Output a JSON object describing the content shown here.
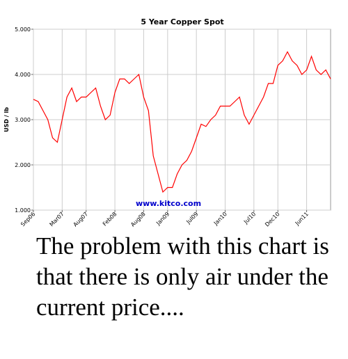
{
  "chart_data": {
    "type": "line",
    "title": "5 Year Copper Spot",
    "y_label": "USD / lb",
    "watermark": "www.kitco.com",
    "categories": [
      "Sep06",
      null,
      null,
      null,
      null,
      null,
      "Mar07",
      null,
      null,
      null,
      null,
      "Aug07",
      null,
      null,
      null,
      null,
      null,
      "Feb08",
      null,
      null,
      null,
      null,
      null,
      "Aug08",
      null,
      null,
      null,
      null,
      "Jan09",
      null,
      null,
      null,
      null,
      null,
      "Jul09",
      null,
      null,
      null,
      null,
      null,
      "Jan10",
      null,
      null,
      null,
      null,
      null,
      "Jul10",
      null,
      null,
      null,
      null,
      "Dec10",
      null,
      null,
      null,
      null,
      null,
      "Jun11",
      null,
      null,
      null,
      null,
      null
    ],
    "series": [
      {
        "name": "Copper",
        "color": "#ff0000",
        "values": [
          3.45,
          3.4,
          3.2,
          3.0,
          2.6,
          2.5,
          3.0,
          3.5,
          3.7,
          3.4,
          3.5,
          3.5,
          3.6,
          3.7,
          3.3,
          3.0,
          3.1,
          3.6,
          3.9,
          3.9,
          3.8,
          3.9,
          4.0,
          3.5,
          3.2,
          2.2,
          1.8,
          1.4,
          1.5,
          1.5,
          1.8,
          2.0,
          2.1,
          2.3,
          2.6,
          2.9,
          2.85,
          3.0,
          3.1,
          3.3,
          3.3,
          3.3,
          3.4,
          3.5,
          3.1,
          2.9,
          3.1,
          3.3,
          3.5,
          3.8,
          3.8,
          4.2,
          4.3,
          4.5,
          4.3,
          4.2,
          4.0,
          4.1,
          4.4,
          4.1,
          4.0,
          4.1,
          3.9
        ]
      }
    ],
    "ylim": [
      1,
      5
    ],
    "yticks": [
      {
        "value": 1,
        "label": "1.000"
      },
      {
        "value": 2,
        "label": "2.000"
      },
      {
        "value": 3,
        "label": "3.000"
      },
      {
        "value": 4,
        "label": "4.000"
      },
      {
        "value": 5,
        "label": "5.000"
      }
    ],
    "grid": true
  },
  "caption": "The problem with this chart is that there is only air under the current price...."
}
